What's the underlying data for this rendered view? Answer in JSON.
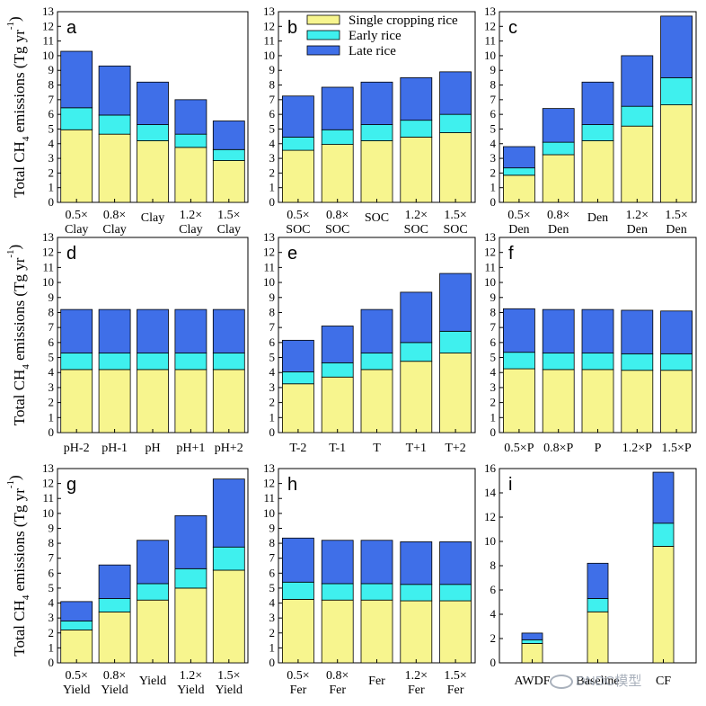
{
  "y_axis_label": {
    "main": "Total CH",
    "sub": "4",
    "unit": " emissions (Tg yr",
    "sup": "-1",
    "close": ")"
  },
  "legend": [
    {
      "name": "Single cropping rice",
      "color": "#f7f58e"
    },
    {
      "name": "Early rice",
      "color": "#3ff0ee"
    },
    {
      "name": "Late rice",
      "color": "#3f6fe8"
    }
  ],
  "watermark": "DNDC模型",
  "chart_data": [
    {
      "type": "stacked-bar",
      "panel": "a",
      "ylim": [
        0,
        13
      ],
      "categories": [
        [
          "0.5×",
          "Clay"
        ],
        [
          "0.8×",
          "Clay"
        ],
        [
          "Clay"
        ],
        [
          "1.2×",
          "Clay"
        ],
        [
          "1.5×",
          "Clay"
        ]
      ],
      "series": [
        {
          "name": "Single cropping rice",
          "values": [
            4.95,
            4.65,
            4.2,
            3.75,
            2.85
          ]
        },
        {
          "name": "Early rice",
          "values": [
            1.5,
            1.3,
            1.1,
            0.9,
            0.75
          ]
        },
        {
          "name": "Late rice",
          "values": [
            3.85,
            3.35,
            2.9,
            2.35,
            1.95
          ]
        }
      ]
    },
    {
      "type": "stacked-bar",
      "panel": "b",
      "ylim": [
        0,
        13
      ],
      "categories": [
        [
          "0.5×",
          "SOC"
        ],
        [
          "0.8×",
          "SOC"
        ],
        [
          "SOC"
        ],
        [
          "1.2×",
          "SOC"
        ],
        [
          "1.5×",
          "SOC"
        ]
      ],
      "series": [
        {
          "name": "Single cropping rice",
          "values": [
            3.55,
            3.95,
            4.2,
            4.45,
            4.75
          ]
        },
        {
          "name": "Early rice",
          "values": [
            0.9,
            1.0,
            1.1,
            1.15,
            1.25
          ]
        },
        {
          "name": "Late rice",
          "values": [
            2.8,
            2.9,
            2.9,
            2.9,
            2.9
          ]
        }
      ]
    },
    {
      "type": "stacked-bar",
      "panel": "c",
      "ylim": [
        0,
        13
      ],
      "categories": [
        [
          "0.5×",
          "Den"
        ],
        [
          "0.8×",
          "Den"
        ],
        [
          "Den"
        ],
        [
          "1.2×",
          "Den"
        ],
        [
          "1.5×",
          "Den"
        ]
      ],
      "series": [
        {
          "name": "Single cropping rice",
          "values": [
            1.85,
            3.25,
            4.2,
            5.2,
            6.65
          ]
        },
        {
          "name": "Early rice",
          "values": [
            0.5,
            0.85,
            1.1,
            1.35,
            1.85
          ]
        },
        {
          "name": "Late rice",
          "values": [
            1.45,
            2.3,
            2.9,
            3.45,
            4.2
          ]
        }
      ]
    },
    {
      "type": "stacked-bar",
      "panel": "d",
      "ylim": [
        0,
        13
      ],
      "categories": [
        [
          "pH-2"
        ],
        [
          "pH-1"
        ],
        [
          "pH"
        ],
        [
          "pH+1"
        ],
        [
          "pH+2"
        ]
      ],
      "series": [
        {
          "name": "Single cropping rice",
          "values": [
            4.2,
            4.2,
            4.2,
            4.2,
            4.2
          ]
        },
        {
          "name": "Early rice",
          "values": [
            1.1,
            1.1,
            1.1,
            1.1,
            1.1
          ]
        },
        {
          "name": "Late rice",
          "values": [
            2.9,
            2.9,
            2.9,
            2.9,
            2.9
          ]
        }
      ]
    },
    {
      "type": "stacked-bar",
      "panel": "e",
      "ylim": [
        0,
        13
      ],
      "categories": [
        [
          "T-2"
        ],
        [
          "T-1"
        ],
        [
          "T"
        ],
        [
          "T+1"
        ],
        [
          "T+2"
        ]
      ],
      "series": [
        {
          "name": "Single cropping rice",
          "values": [
            3.25,
            3.7,
            4.2,
            4.75,
            5.3
          ]
        },
        {
          "name": "Early rice",
          "values": [
            0.8,
            0.95,
            1.1,
            1.25,
            1.45
          ]
        },
        {
          "name": "Late rice",
          "values": [
            2.1,
            2.45,
            2.9,
            3.35,
            3.85
          ]
        }
      ]
    },
    {
      "type": "stacked-bar",
      "panel": "f",
      "ylim": [
        0,
        13
      ],
      "categories": [
        [
          "0.5×P"
        ],
        [
          "0.8×P"
        ],
        [
          "P"
        ],
        [
          "1.2×P"
        ],
        [
          "1.5×P"
        ]
      ],
      "series": [
        {
          "name": "Single cropping rice",
          "values": [
            4.25,
            4.2,
            4.2,
            4.15,
            4.15
          ]
        },
        {
          "name": "Early rice",
          "values": [
            1.1,
            1.1,
            1.1,
            1.1,
            1.1
          ]
        },
        {
          "name": "Late rice",
          "values": [
            2.9,
            2.9,
            2.9,
            2.9,
            2.85
          ]
        }
      ]
    },
    {
      "type": "stacked-bar",
      "panel": "g",
      "ylim": [
        0,
        13
      ],
      "categories": [
        [
          "0.5×",
          "Yield"
        ],
        [
          "0.8×",
          "Yield"
        ],
        [
          "Yield"
        ],
        [
          "1.2×",
          "Yield"
        ],
        [
          "1.5×",
          "Yield"
        ]
      ],
      "series": [
        {
          "name": "Single cropping rice",
          "values": [
            2.2,
            3.4,
            4.2,
            5.0,
            6.2
          ]
        },
        {
          "name": "Early rice",
          "values": [
            0.6,
            0.9,
            1.1,
            1.3,
            1.55
          ]
        },
        {
          "name": "Late rice",
          "values": [
            1.3,
            2.25,
            2.9,
            3.55,
            4.55
          ]
        }
      ]
    },
    {
      "type": "stacked-bar",
      "panel": "h",
      "ylim": [
        0,
        13
      ],
      "categories": [
        [
          "0.5×",
          "Fer"
        ],
        [
          "0.8×",
          "Fer"
        ],
        [
          "Fer"
        ],
        [
          "1.2×",
          "Fer"
        ],
        [
          "1.5×",
          "Fer"
        ]
      ],
      "series": [
        {
          "name": "Single cropping rice",
          "values": [
            4.25,
            4.2,
            4.2,
            4.15,
            4.15
          ]
        },
        {
          "name": "Early rice",
          "values": [
            1.15,
            1.1,
            1.1,
            1.1,
            1.1
          ]
        },
        {
          "name": "Late rice",
          "values": [
            2.95,
            2.9,
            2.9,
            2.85,
            2.85
          ]
        }
      ]
    },
    {
      "type": "stacked-bar",
      "panel": "i",
      "ylim": [
        0,
        16
      ],
      "categories": [
        [
          "AWDF"
        ],
        [
          "Baseline"
        ],
        [
          "CF"
        ]
      ],
      "series": [
        {
          "name": "Single cropping rice",
          "values": [
            1.6,
            4.2,
            9.6
          ]
        },
        {
          "name": "Early rice",
          "values": [
            0.3,
            1.1,
            1.9
          ]
        },
        {
          "name": "Late rice",
          "values": [
            0.55,
            2.9,
            4.2
          ]
        }
      ]
    }
  ]
}
